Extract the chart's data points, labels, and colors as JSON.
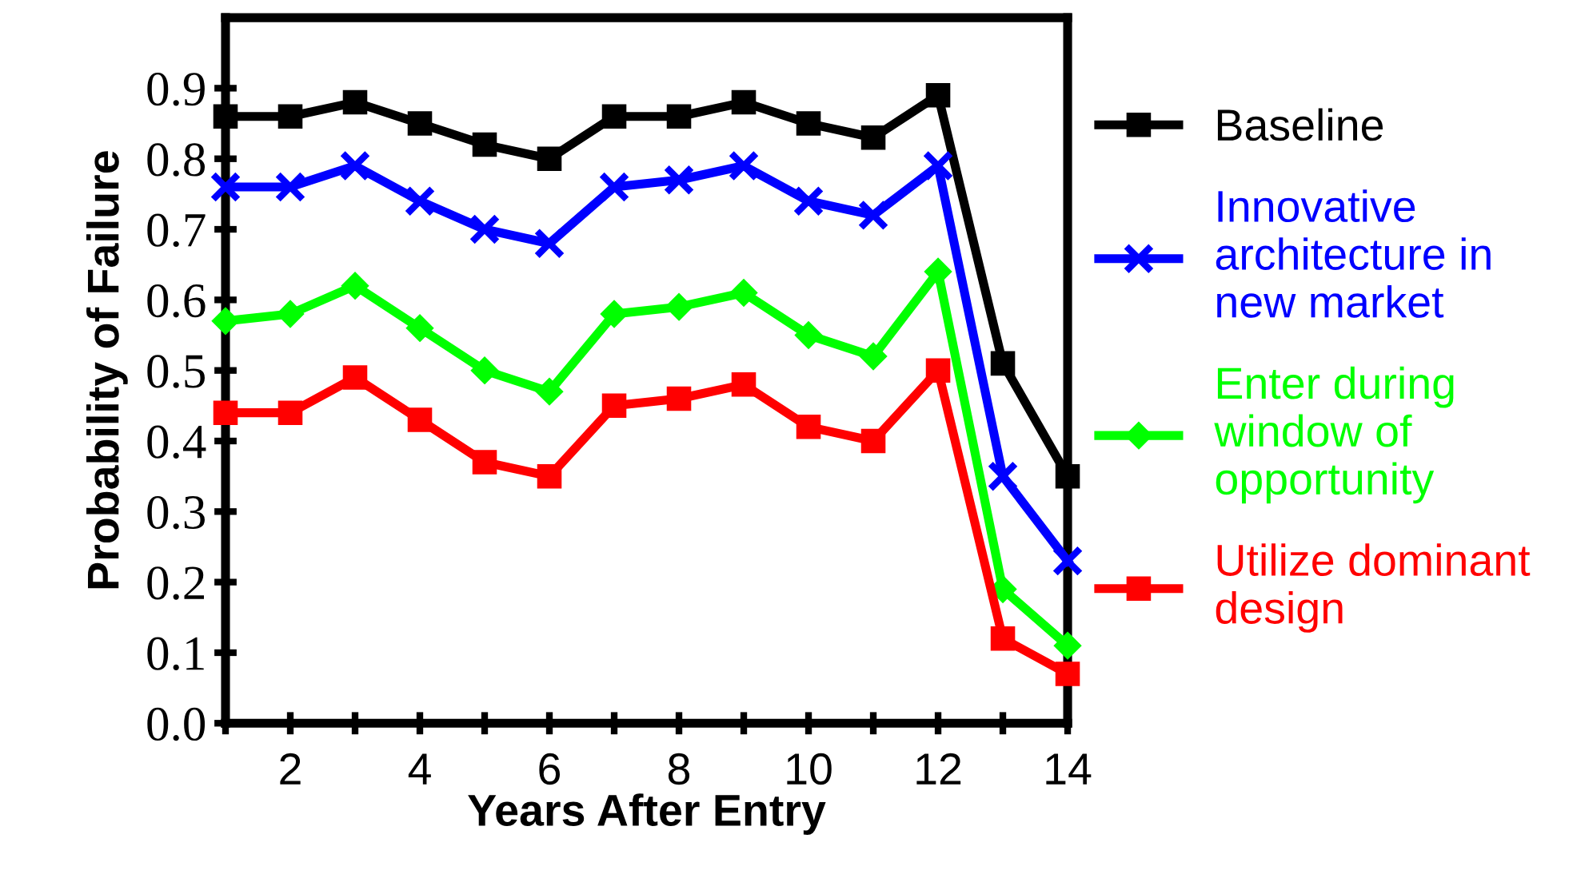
{
  "chart_data": {
    "type": "line",
    "xlabel": "Years After Entry",
    "ylabel": "Probability of Failure",
    "x": [
      1,
      2,
      3,
      4,
      5,
      6,
      7,
      8,
      9,
      10,
      11,
      12,
      13,
      14
    ],
    "series": [
      {
        "name": "Baseline",
        "color": "#000000",
        "marker": "square",
        "values": [
          0.86,
          0.86,
          0.88,
          0.85,
          0.82,
          0.8,
          0.86,
          0.86,
          0.88,
          0.85,
          0.83,
          0.89,
          0.51,
          0.35
        ]
      },
      {
        "name": "Innovative architecture in new market",
        "color": "#0000ff",
        "marker": "cross",
        "values": [
          0.76,
          0.76,
          0.79,
          0.74,
          0.7,
          0.68,
          0.76,
          0.77,
          0.79,
          0.74,
          0.72,
          0.79,
          0.35,
          0.23
        ]
      },
      {
        "name": "Enter during window of opportunity",
        "color": "#00ff00",
        "marker": "diamond",
        "values": [
          0.57,
          0.58,
          0.62,
          0.56,
          0.5,
          0.47,
          0.58,
          0.59,
          0.61,
          0.55,
          0.52,
          0.64,
          0.19,
          0.11
        ]
      },
      {
        "name": "Utilize dominant design",
        "color": "#ff0000",
        "marker": "square",
        "values": [
          0.44,
          0.44,
          0.49,
          0.43,
          0.37,
          0.35,
          0.45,
          0.46,
          0.48,
          0.42,
          0.4,
          0.5,
          0.12,
          0.07
        ]
      }
    ],
    "xlim": [
      1,
      14
    ],
    "xticks": [
      {
        "value": 1,
        "label": null
      },
      2,
      {
        "value": 3,
        "label": null
      },
      4,
      {
        "value": 5,
        "label": null
      },
      6,
      {
        "value": 7,
        "label": null
      },
      8,
      {
        "value": 9,
        "label": null
      },
      10,
      {
        "value": 11,
        "label": null
      },
      12,
      {
        "value": 13,
        "label": null
      },
      14
    ],
    "ylim": [
      0,
      1.0
    ],
    "yticks": [
      {
        "value": 0,
        "label": "0.0"
      },
      0.1,
      0.2,
      0.3,
      0.4,
      0.5,
      0.6,
      0.7,
      0.8,
      0.9
    ],
    "grid": false,
    "legend": "right",
    "line_style": "solid"
  }
}
